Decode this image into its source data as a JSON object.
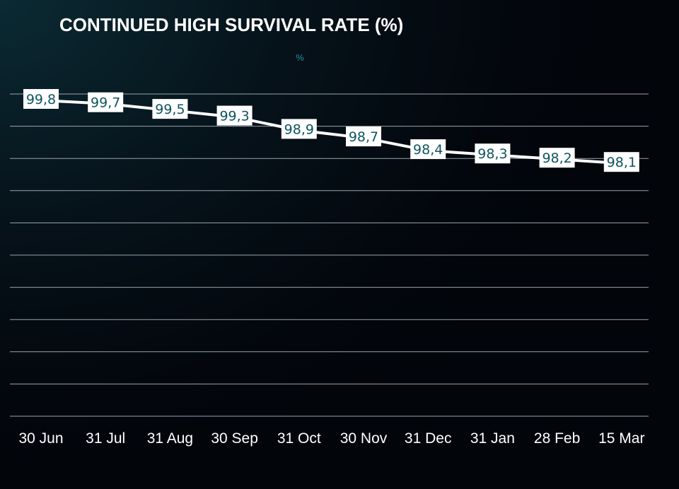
{
  "title": "CONTINUED HIGH SURVIVAL RATE (%)",
  "colors": {
    "background": "#03070d",
    "line": "#ffffff",
    "label_text": "#0f5560",
    "unit_text": "#1d6f7a",
    "grid": "#9aa3ab"
  },
  "chart_data": {
    "type": "line",
    "title": "CONTINUED HIGH SURVIVAL RATE (%)",
    "unit_label": "%",
    "categories": [
      "30 Jun",
      "31 Jul",
      "31 Aug",
      "30 Sep",
      "31 Oct",
      "30 Nov",
      "31 Dec",
      "31 Jan",
      "28 Feb",
      "15 Mar"
    ],
    "series": [
      {
        "values": [
          99.8,
          99.7,
          99.5,
          99.3,
          98.9,
          98.7,
          98.4,
          98.3,
          98.2,
          98.1
        ],
        "labels": [
          "99,8",
          "99,7",
          "99,5",
          "99,3",
          "98,9",
          "98,7",
          "98,4",
          "98,3",
          "98,2",
          "98,1"
        ]
      }
    ],
    "grid": true,
    "legend": "none",
    "data_labels": true
  }
}
